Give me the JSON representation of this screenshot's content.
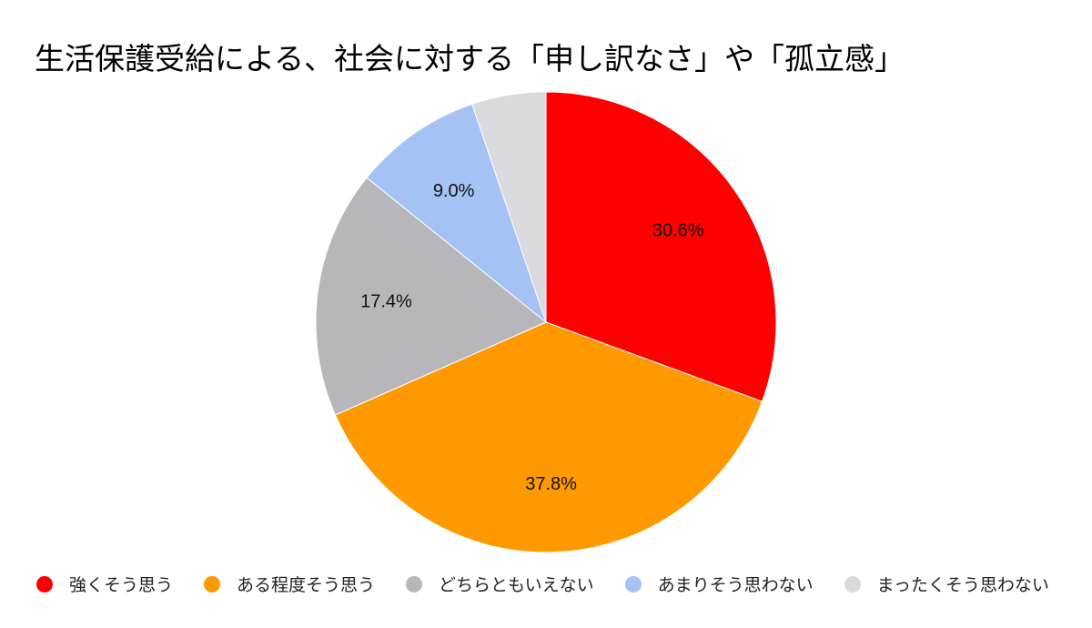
{
  "chart_data": {
    "type": "pie",
    "title": "生活保護受給による、社会に対する「申し訳なさ」や「孤立感」",
    "categories": [
      "強くそう思う",
      "ある程度そう思う",
      "どちらともいえない",
      "あまりそう思わない",
      "まったくそう思わない"
    ],
    "values": [
      30.6,
      37.8,
      17.4,
      9.0,
      5.2
    ],
    "data_labels": [
      "30.6%",
      "37.8%",
      "17.4%",
      "9.0%",
      ""
    ],
    "colors": [
      "#ff0000",
      "#ff9900",
      "#b7b7bb",
      "#a4c2f4",
      "#d9d9de"
    ],
    "start": "top",
    "direction": "clockwise",
    "legend": "bottom"
  }
}
